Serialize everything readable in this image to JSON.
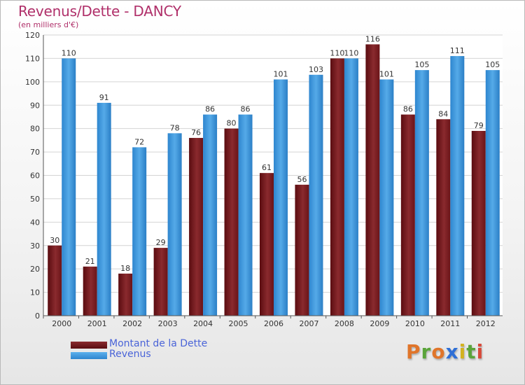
{
  "header": {
    "title": "Revenus/Dette - DANCY",
    "subtitle": "(en milliers d'€)"
  },
  "chart_data": {
    "type": "bar",
    "title": "Revenus/Dette - DANCY",
    "ylabel": "(en milliers d'€)",
    "xlabel": "",
    "ylim": [
      0,
      120
    ],
    "yticks": [
      0,
      10,
      20,
      30,
      40,
      50,
      60,
      70,
      80,
      90,
      100,
      110,
      120
    ],
    "grid": true,
    "categories": [
      "2000",
      "2001",
      "2002",
      "2003",
      "2004",
      "2005",
      "2006",
      "2007",
      "2008",
      "2009",
      "2010",
      "2011",
      "2012"
    ],
    "series": [
      {
        "name": "Montant de la Dette",
        "color": "#7a1a1e",
        "values": [
          30,
          21,
          18,
          29,
          76,
          80,
          61,
          56,
          110,
          116,
          86,
          84,
          79
        ]
      },
      {
        "name": "Revenus",
        "color": "#3d96dc",
        "values": [
          110,
          91,
          72,
          78,
          86,
          86,
          101,
          103,
          110,
          101,
          105,
          111,
          105
        ]
      }
    ],
    "legend_position": "bottom-left"
  },
  "legend": {
    "items": [
      {
        "label": "Montant de la Dette",
        "color": "#6a0f14"
      },
      {
        "label": "Revenus",
        "color": "#3d96dc"
      }
    ]
  },
  "brand": {
    "letters": [
      "P",
      "r",
      "o",
      "x",
      "i",
      "t",
      "i"
    ],
    "colors": [
      "#e0752a",
      "#5aa43a",
      "#e0752a",
      "#2f6fd6",
      "#d3b21f",
      "#5aa43a",
      "#d84a3a"
    ]
  }
}
